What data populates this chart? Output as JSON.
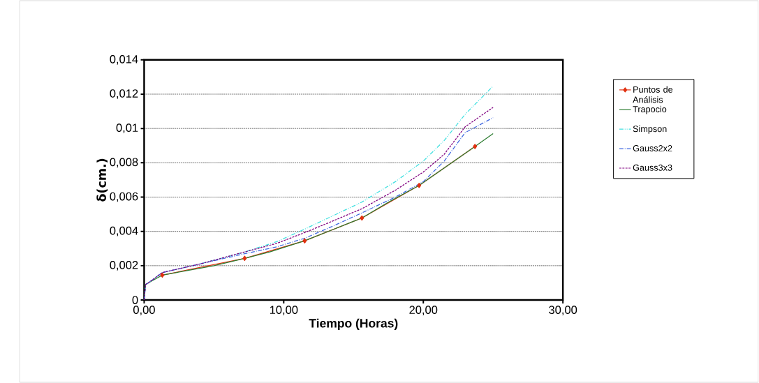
{
  "chart_data": {
    "type": "line",
    "xlabel": "Tiempo (Horas)",
    "ylabel": "δ(cm.)",
    "xlim": [
      0,
      30
    ],
    "ylim": [
      0,
      0.014
    ],
    "xticks": [
      {
        "value": 0,
        "label": "0,00"
      },
      {
        "value": 10,
        "label": "10,00"
      },
      {
        "value": 20,
        "label": "20,00"
      },
      {
        "value": 30,
        "label": "30,00"
      }
    ],
    "yticks": [
      0,
      {
        "value": 0.002,
        "label": "0,002"
      },
      {
        "value": 0.004,
        "label": "0,004"
      },
      {
        "value": 0.006,
        "label": "0,006"
      },
      {
        "value": 0.008,
        "label": "0,008"
      },
      {
        "value": 0.01,
        "label": "0,01"
      },
      {
        "value": 0.012,
        "label": "0,012"
      },
      {
        "value": 0.014,
        "label": "0,014"
      }
    ],
    "grid": "y",
    "legend": "right",
    "series": [
      {
        "name": "Trapocio",
        "color": "#2e7d32",
        "line_style": "solid",
        "marker": "none",
        "x": [
          0,
          0.1,
          0.3,
          1.3,
          3,
          5,
          7.2,
          9,
          11.5,
          13.5,
          15.6,
          17.5,
          19.7,
          21.5,
          23.7,
          25
        ],
        "values": [
          0,
          0.0009,
          0.001,
          0.00145,
          0.0017,
          0.002,
          0.00243,
          0.0028,
          0.00345,
          0.0041,
          0.00478,
          0.0057,
          0.00668,
          0.0077,
          0.00895,
          0.0097
        ]
      },
      {
        "name": "Simpson",
        "color": "#40e0e0",
        "line_style": "dashdotdotted",
        "marker": "none",
        "x": [
          0,
          0.1,
          0.3,
          1.3,
          4,
          7.2,
          9.5,
          11.5,
          13.5,
          15.6,
          18,
          20,
          21.5,
          23,
          25
        ],
        "values": [
          0,
          0.0009,
          0.001,
          0.0016,
          0.0021,
          0.0028,
          0.0034,
          0.00413,
          0.0049,
          0.00571,
          0.0069,
          0.0081,
          0.0093,
          0.01083,
          0.01247
        ]
      },
      {
        "name": "Gauss2x2",
        "color": "#4169e1",
        "line_style": "dashdotted",
        "marker": "none",
        "x": [
          0,
          0.1,
          0.3,
          1.3,
          4,
          7.2,
          9.5,
          11.5,
          13.5,
          15.6,
          18,
          20,
          21.5,
          23,
          25
        ],
        "values": [
          0,
          0.0009,
          0.001,
          0.0016,
          0.0021,
          0.0027,
          0.0031,
          0.0036,
          0.0043,
          0.00508,
          0.006,
          0.0069,
          0.0081,
          0.00976,
          0.01063
        ]
      },
      {
        "name": "Gauss3x3",
        "color": "#800080",
        "line_style": "dashed",
        "marker": "none",
        "x": [
          0,
          0.1,
          0.3,
          1.3,
          4,
          7.2,
          9.5,
          11.5,
          13.5,
          15.6,
          18,
          20,
          21.5,
          23,
          25
        ],
        "values": [
          0,
          0.0009,
          0.001,
          0.0016,
          0.0021,
          0.0028,
          0.0033,
          0.00393,
          0.0046,
          0.00532,
          0.0064,
          0.00746,
          0.0085,
          0.0101,
          0.01123
        ]
      },
      {
        "name": "Puntos de Análisis",
        "color": "#e03010",
        "line_style": "solid",
        "marker": "diamond",
        "x": [
          1.3,
          7.2,
          11.5,
          15.6,
          19.7,
          23.7
        ],
        "values": [
          0.00145,
          0.00243,
          0.00345,
          0.00478,
          0.00668,
          0.00895
        ]
      }
    ]
  }
}
